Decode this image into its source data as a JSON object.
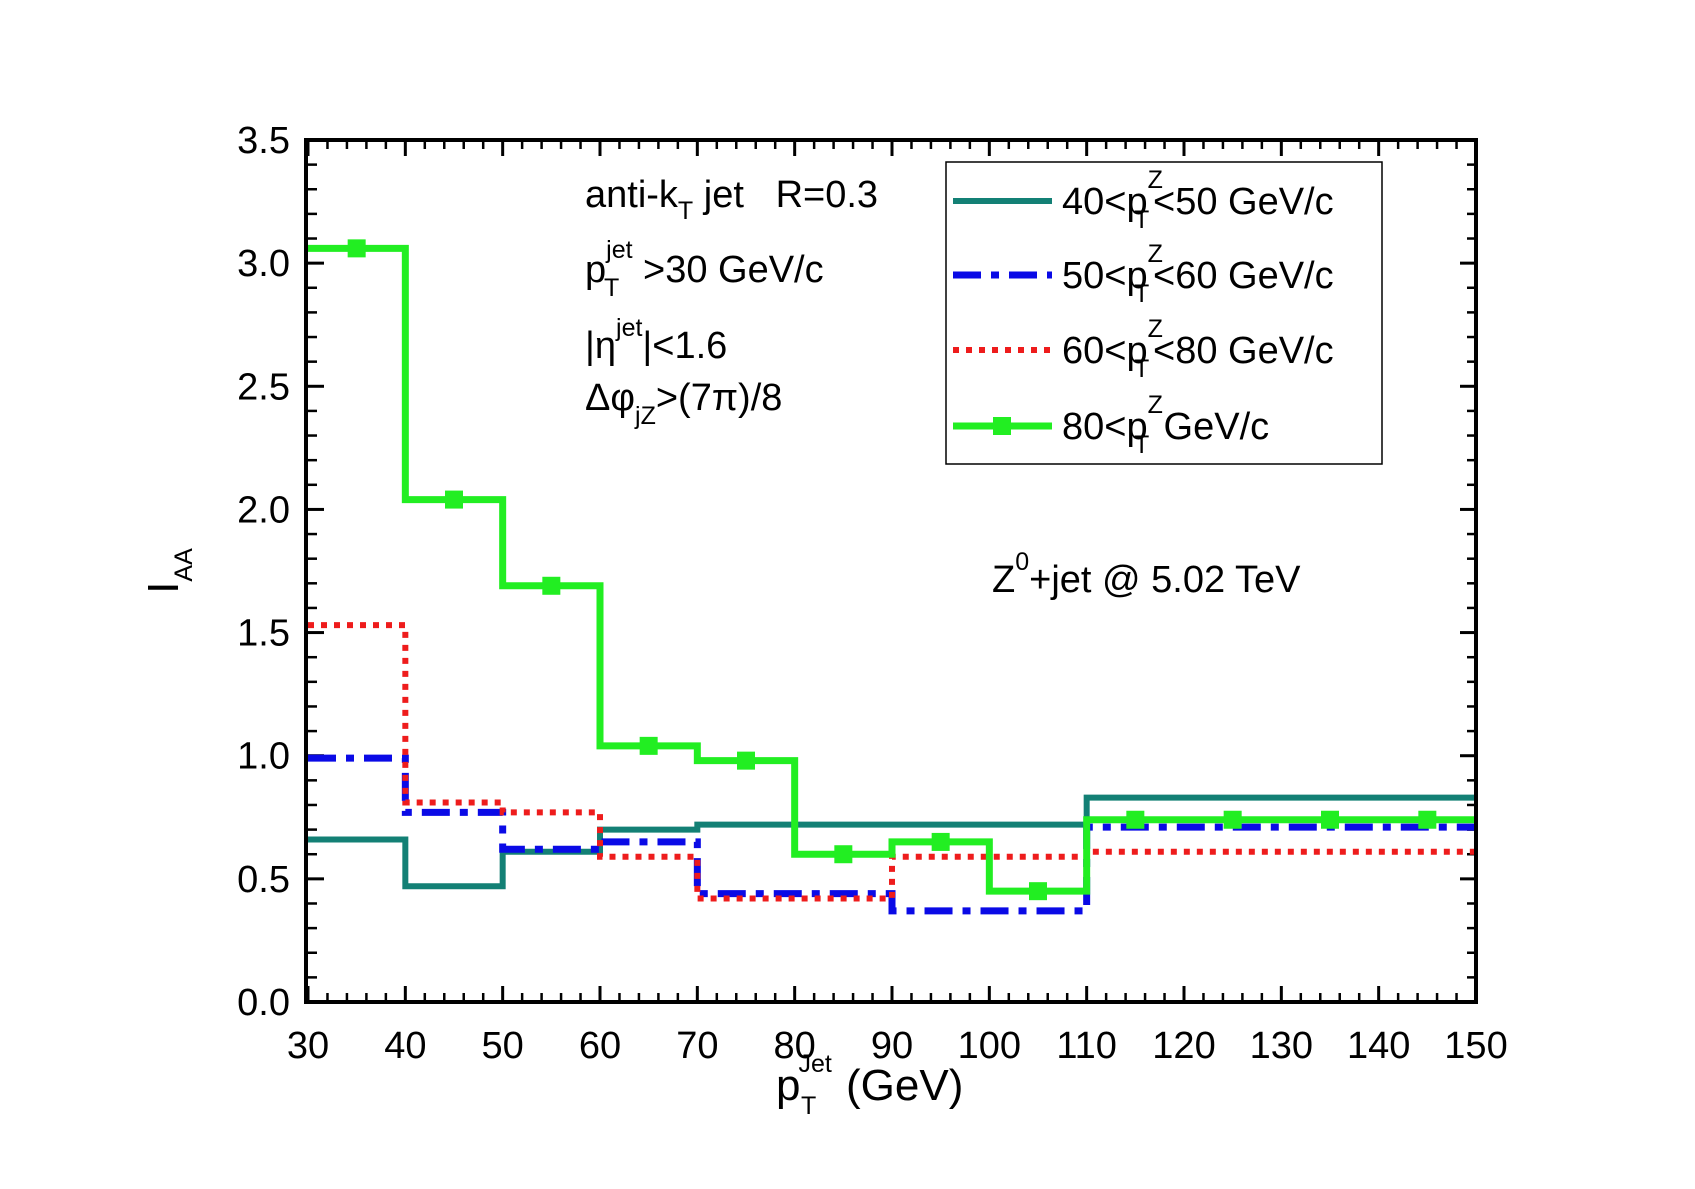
{
  "chart_data": {
    "type": "line",
    "step": true,
    "title": "",
    "xlabel": {
      "main": "p",
      "sub": "T",
      "sup": "Jet",
      "unit": "(GeV)"
    },
    "ylabel": {
      "main": "I",
      "sub": "AA"
    },
    "xlim": [
      30,
      150
    ],
    "ylim": [
      0.0,
      3.5
    ],
    "xticks": [
      30,
      40,
      50,
      60,
      70,
      80,
      90,
      100,
      110,
      120,
      130,
      140,
      150
    ],
    "xtick_labels": [
      "30",
      "40",
      "50",
      "60",
      "70",
      "80",
      "90",
      "100",
      "110",
      "120",
      "130",
      "140",
      "150"
    ],
    "yticks": [
      0.0,
      0.5,
      1.0,
      1.5,
      2.0,
      2.5,
      3.0,
      3.5
    ],
    "ytick_labels": [
      "0.0",
      "0.5",
      "1.0",
      "1.5",
      "2.0",
      "2.5",
      "3.0",
      "3.5"
    ],
    "bin_edges": [
      30,
      40,
      50,
      60,
      70,
      80,
      90,
      100,
      110,
      150
    ],
    "series": [
      {
        "name": "40<p_T^Z<50 GeV/c",
        "legend": {
          "pre": "40<p",
          "sub": "T",
          "sup": "Z",
          "post": "<50 GeV/c"
        },
        "color": "#138075",
        "style": "solid",
        "values": [
          0.66,
          0.47,
          0.61,
          0.7,
          0.72,
          0.72,
          0.72,
          0.72,
          0.83
        ]
      },
      {
        "name": "50<p_T^Z<60 GeV/c",
        "legend": {
          "pre": "50<p",
          "sub": "T",
          "sup": "Z",
          "post": "<60 GeV/c"
        },
        "color": "#0a0ae6",
        "style": "dashdot",
        "values": [
          0.99,
          0.77,
          0.62,
          0.65,
          0.44,
          0.44,
          0.37,
          0.37,
          0.71
        ]
      },
      {
        "name": "60<p_T^Z<80 GeV/c",
        "legend": {
          "pre": "60<p",
          "sub": "T",
          "sup": "Z",
          "post": "<80 GeV/c"
        },
        "color": "#ee1c1c",
        "style": "dotted",
        "values": [
          1.53,
          0.81,
          0.77,
          0.59,
          0.42,
          0.42,
          0.59,
          0.59,
          0.61
        ]
      },
      {
        "name": "80<p_T^Z GeV/c",
        "legend": {
          "pre": "80<p",
          "sub": "T",
          "sup": "Z",
          "post": " GeV/c"
        },
        "color": "#22ee22",
        "style": "solid-square-markers",
        "values": [
          3.06,
          2.04,
          1.69,
          1.04,
          0.98,
          0.6,
          0.65,
          0.45,
          0.74
        ],
        "marker_x": [
          35,
          45,
          55,
          65,
          75,
          85,
          95,
          105,
          115,
          125,
          135,
          145
        ],
        "marker_y": [
          3.06,
          2.04,
          1.69,
          1.04,
          0.98,
          0.6,
          0.65,
          0.45,
          0.74,
          0.74,
          0.74,
          0.74
        ]
      }
    ],
    "legend_position": "top-right",
    "annotations": {
      "jet_algo": {
        "pre": "anti-k",
        "sub": "T",
        "post": " jet   R=0.3"
      },
      "pt_cut": {
        "pre": "p",
        "sub": "T",
        "sup": "jet",
        "post": ">30 GeV/c"
      },
      "eta_cut": {
        "pre": "|η",
        "sup": "jet",
        "post": "|<1.6"
      },
      "dphi_cut": {
        "pre": "Δφ",
        "sub": "jZ",
        "post": ">(7π)/8"
      },
      "system": {
        "pre": "Z",
        "sup": "0",
        "post": "+jet @ 5.02 TeV"
      }
    }
  }
}
